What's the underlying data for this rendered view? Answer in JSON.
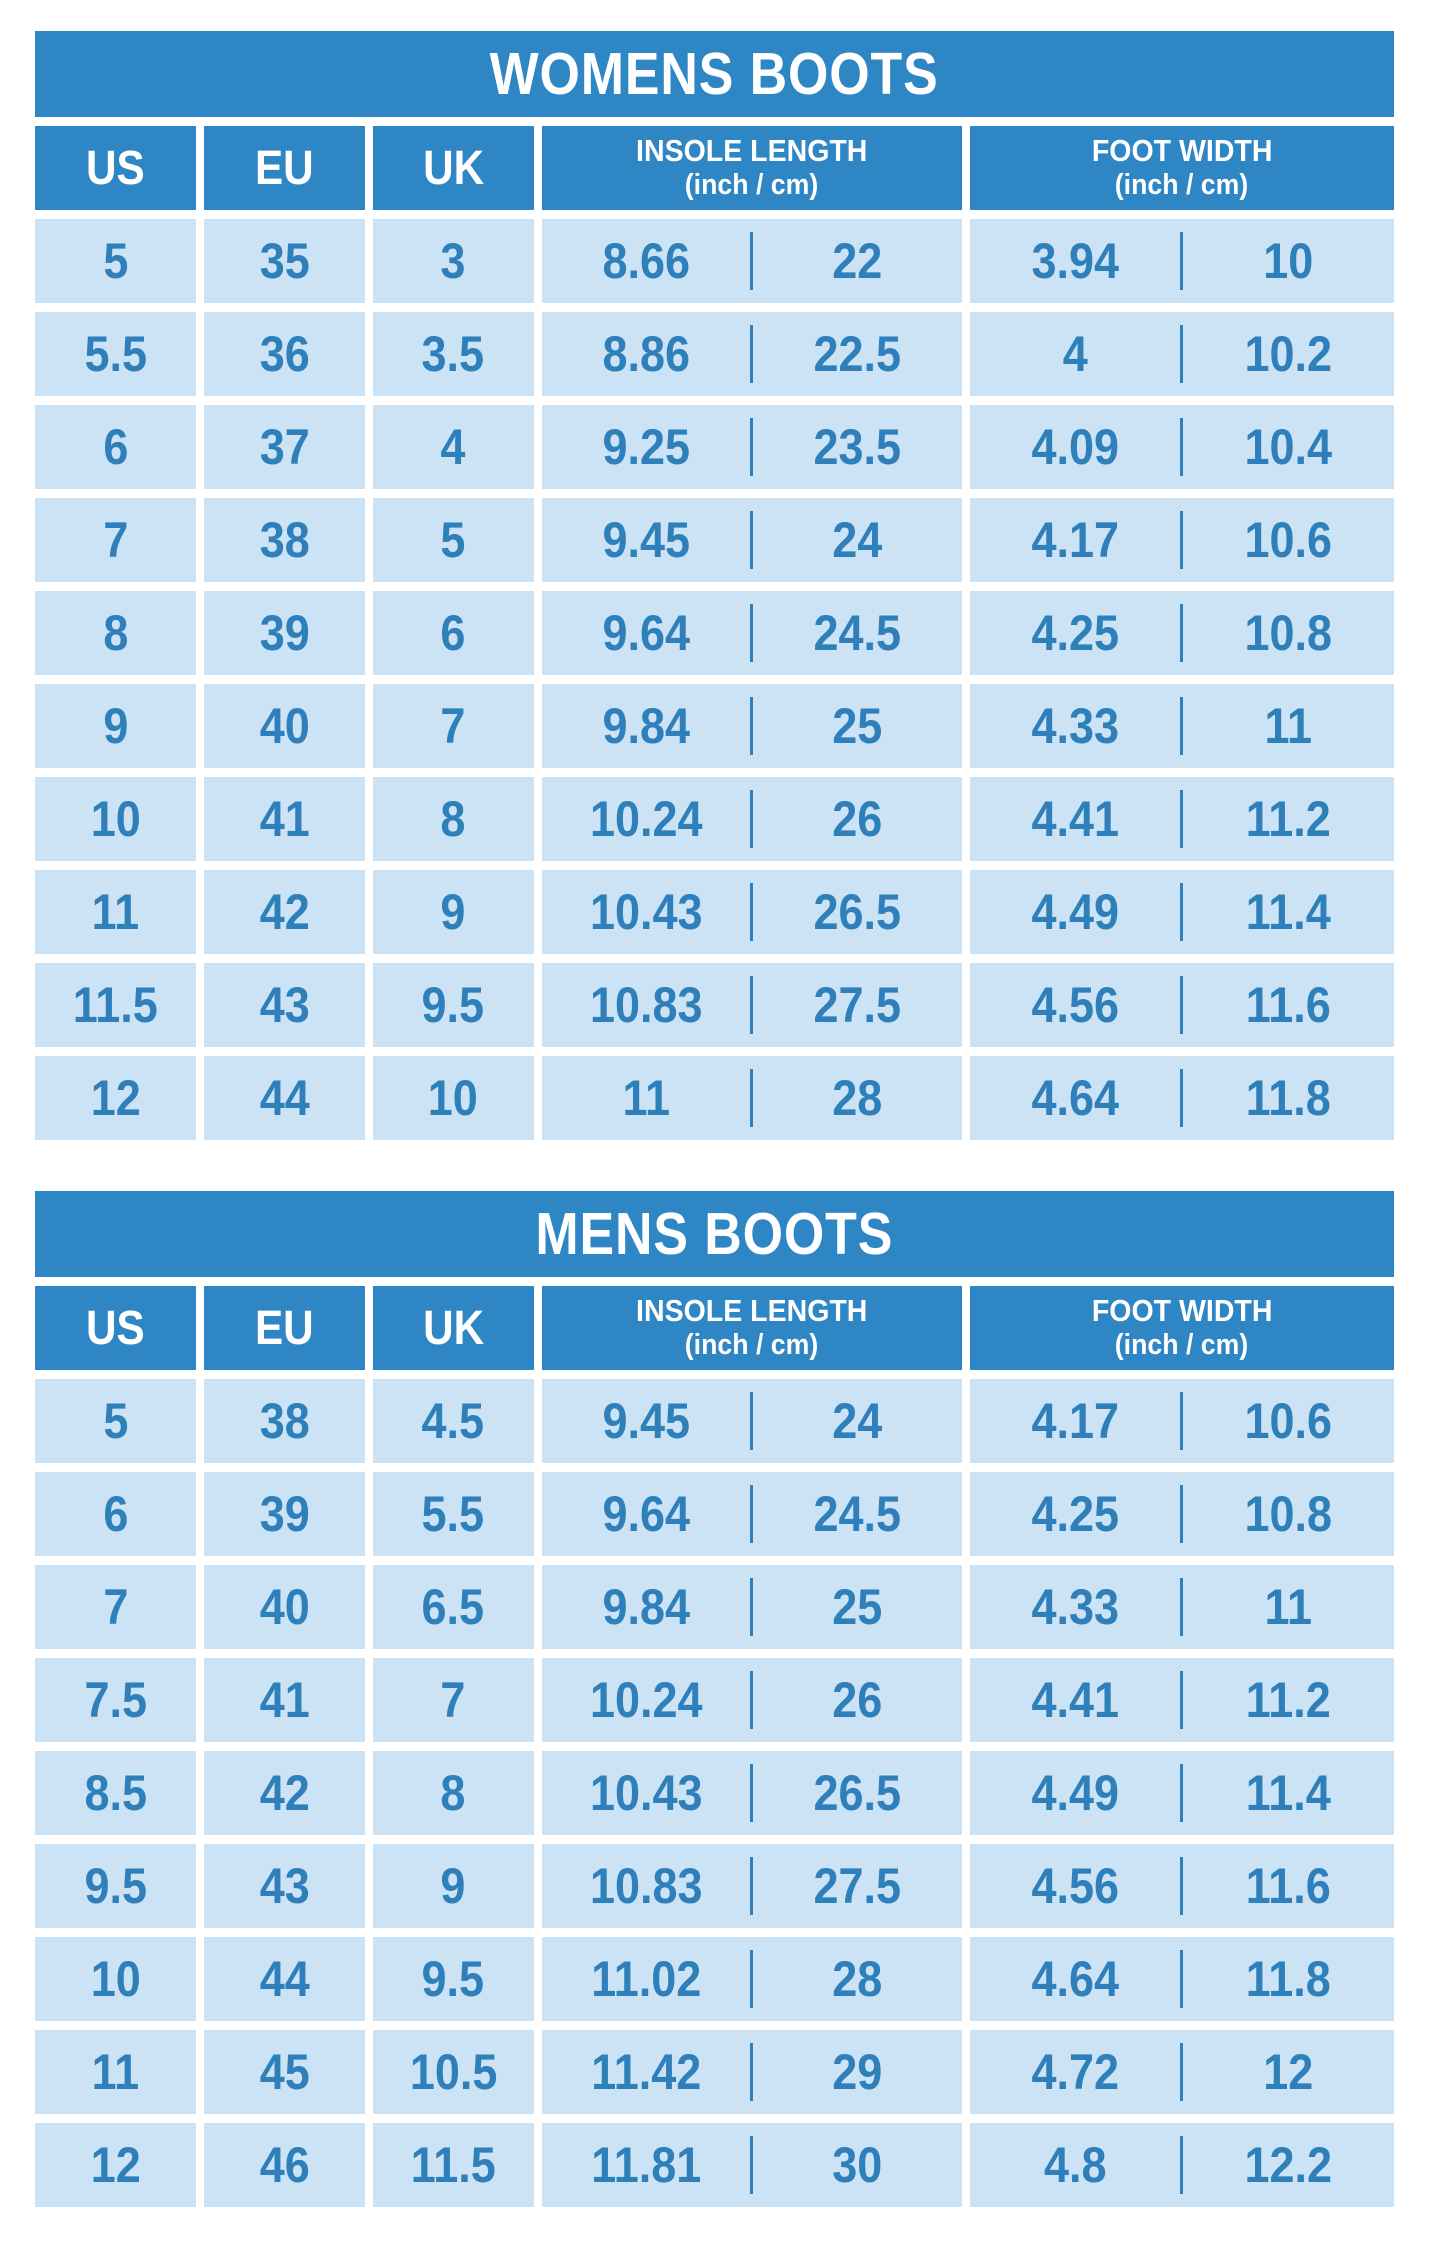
{
  "colors": {
    "header_bg": "#2e86c4",
    "header_text": "#ffffff",
    "cell_bg": "#cbe3f4",
    "cell_text": "#2e7fba",
    "divider": "#2e7fba",
    "page_bg": "#ffffff"
  },
  "chart_data": [
    {
      "type": "table",
      "title": "WOMENS BOOTS",
      "columns": [
        "US",
        "EU",
        "UK",
        "INSOLE LENGTH (inch / cm)",
        "FOOT WIDTH (inch / cm)"
      ],
      "header": {
        "us": "US",
        "eu": "EU",
        "uk": "UK",
        "insole_line1": "INSOLE LENGTH",
        "insole_line2": "(inch / cm)",
        "width_line1": "FOOT WIDTH",
        "width_line2": "(inch / cm)"
      },
      "rows": [
        {
          "us": "5",
          "eu": "35",
          "uk": "3",
          "insole_in": "8.66",
          "insole_cm": "22",
          "width_in": "3.94",
          "width_cm": "10"
        },
        {
          "us": "5.5",
          "eu": "36",
          "uk": "3.5",
          "insole_in": "8.86",
          "insole_cm": "22.5",
          "width_in": "4",
          "width_cm": "10.2"
        },
        {
          "us": "6",
          "eu": "37",
          "uk": "4",
          "insole_in": "9.25",
          "insole_cm": "23.5",
          "width_in": "4.09",
          "width_cm": "10.4"
        },
        {
          "us": "7",
          "eu": "38",
          "uk": "5",
          "insole_in": "9.45",
          "insole_cm": "24",
          "width_in": "4.17",
          "width_cm": "10.6"
        },
        {
          "us": "8",
          "eu": "39",
          "uk": "6",
          "insole_in": "9.64",
          "insole_cm": "24.5",
          "width_in": "4.25",
          "width_cm": "10.8"
        },
        {
          "us": "9",
          "eu": "40",
          "uk": "7",
          "insole_in": "9.84",
          "insole_cm": "25",
          "width_in": "4.33",
          "width_cm": "11"
        },
        {
          "us": "10",
          "eu": "41",
          "uk": "8",
          "insole_in": "10.24",
          "insole_cm": "26",
          "width_in": "4.41",
          "width_cm": "11.2"
        },
        {
          "us": "11",
          "eu": "42",
          "uk": "9",
          "insole_in": "10.43",
          "insole_cm": "26.5",
          "width_in": "4.49",
          "width_cm": "11.4"
        },
        {
          "us": "11.5",
          "eu": "43",
          "uk": "9.5",
          "insole_in": "10.83",
          "insole_cm": "27.5",
          "width_in": "4.56",
          "width_cm": "11.6"
        },
        {
          "us": "12",
          "eu": "44",
          "uk": "10",
          "insole_in": "11",
          "insole_cm": "28",
          "width_in": "4.64",
          "width_cm": "11.8"
        }
      ]
    },
    {
      "type": "table",
      "title": "MENS BOOTS",
      "columns": [
        "US",
        "EU",
        "UK",
        "INSOLE LENGTH (inch / cm)",
        "FOOT WIDTH (inch / cm)"
      ],
      "header": {
        "us": "US",
        "eu": "EU",
        "uk": "UK",
        "insole_line1": "INSOLE LENGTH",
        "insole_line2": "(inch / cm)",
        "width_line1": "FOOT WIDTH",
        "width_line2": "(inch / cm)"
      },
      "rows": [
        {
          "us": "5",
          "eu": "38",
          "uk": "4.5",
          "insole_in": "9.45",
          "insole_cm": "24",
          "width_in": "4.17",
          "width_cm": "10.6"
        },
        {
          "us": "6",
          "eu": "39",
          "uk": "5.5",
          "insole_in": "9.64",
          "insole_cm": "24.5",
          "width_in": "4.25",
          "width_cm": "10.8"
        },
        {
          "us": "7",
          "eu": "40",
          "uk": "6.5",
          "insole_in": "9.84",
          "insole_cm": "25",
          "width_in": "4.33",
          "width_cm": "11"
        },
        {
          "us": "7.5",
          "eu": "41",
          "uk": "7",
          "insole_in": "10.24",
          "insole_cm": "26",
          "width_in": "4.41",
          "width_cm": "11.2"
        },
        {
          "us": "8.5",
          "eu": "42",
          "uk": "8",
          "insole_in": "10.43",
          "insole_cm": "26.5",
          "width_in": "4.49",
          "width_cm": "11.4"
        },
        {
          "us": "9.5",
          "eu": "43",
          "uk": "9",
          "insole_in": "10.83",
          "insole_cm": "27.5",
          "width_in": "4.56",
          "width_cm": "11.6"
        },
        {
          "us": "10",
          "eu": "44",
          "uk": "9.5",
          "insole_in": "11.02",
          "insole_cm": "28",
          "width_in": "4.64",
          "width_cm": "11.8"
        },
        {
          "us": "11",
          "eu": "45",
          "uk": "10.5",
          "insole_in": "11.42",
          "insole_cm": "29",
          "width_in": "4.72",
          "width_cm": "12"
        },
        {
          "us": "12",
          "eu": "46",
          "uk": "11.5",
          "insole_in": "11.81",
          "insole_cm": "30",
          "width_in": "4.8",
          "width_cm": "12.2"
        }
      ]
    }
  ]
}
